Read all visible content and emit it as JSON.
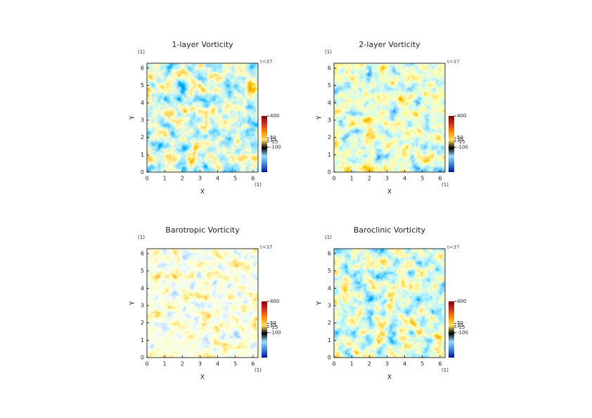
{
  "chart_data": [
    {
      "type": "heatmap",
      "title": "1-layer Vorticity",
      "xlabel": "X",
      "ylabel": "Y",
      "x_unit": "(1)",
      "y_unit": "(1)",
      "annotation": "t=37",
      "xlim": [
        0,
        6.283
      ],
      "xticks": [
        0,
        1,
        2,
        3,
        4,
        5,
        6
      ],
      "ylim": [
        0,
        6.283
      ],
      "yticks": [
        0,
        1,
        2,
        3,
        4,
        5,
        6
      ],
      "clim": [
        -500,
        400
      ],
      "cticks": [
        400,
        50,
        15,
        -15,
        -100
      ],
      "colormap": [
        "#7f0000",
        "#d7301f",
        "#ff8c00",
        "#ffe066",
        "#000000",
        "#9ad8ff",
        "#3a8ad8",
        "#0010a0"
      ]
    },
    {
      "type": "heatmap",
      "title": "2-layer Vorticity",
      "xlabel": "X",
      "ylabel": "Y",
      "x_unit": "(1)",
      "y_unit": "(1)",
      "annotation": "t=37",
      "xlim": [
        0,
        6.283
      ],
      "xticks": [
        0,
        1,
        2,
        3,
        4,
        5,
        6
      ],
      "ylim": [
        0,
        6.283
      ],
      "yticks": [
        0,
        1,
        2,
        3,
        4,
        5,
        6
      ],
      "clim": [
        -500,
        400
      ],
      "cticks": [
        400,
        50,
        15,
        -15,
        -100
      ],
      "colormap": [
        "#7f0000",
        "#d7301f",
        "#ff8c00",
        "#ffe066",
        "#000000",
        "#9ad8ff",
        "#3a8ad8",
        "#0010a0"
      ]
    },
    {
      "type": "heatmap",
      "title": "Barotropic Vorticity",
      "xlabel": "X",
      "ylabel": "Y",
      "x_unit": "(1)",
      "y_unit": "(1)",
      "annotation": "t=37",
      "xlim": [
        0,
        6.283
      ],
      "xticks": [
        0,
        1,
        2,
        3,
        4,
        5,
        6
      ],
      "ylim": [
        0,
        6.283
      ],
      "yticks": [
        0,
        1,
        2,
        3,
        4,
        5,
        6
      ],
      "clim": [
        -500,
        400
      ],
      "cticks": [
        400,
        50,
        15,
        -15,
        -100
      ],
      "colormap": [
        "#7f0000",
        "#d7301f",
        "#ff8c00",
        "#ffe066",
        "#000000",
        "#9ad8ff",
        "#3a8ad8",
        "#0010a0"
      ]
    },
    {
      "type": "heatmap",
      "title": "Baroclinic Vorticity",
      "xlabel": "X",
      "ylabel": "Y",
      "x_unit": "(1)",
      "y_unit": "(1)",
      "annotation": "t=37",
      "xlim": [
        0,
        6.283
      ],
      "xticks": [
        0,
        1,
        2,
        3,
        4,
        5,
        6
      ],
      "ylim": [
        0,
        6.283
      ],
      "yticks": [
        0,
        1,
        2,
        3,
        4,
        5,
        6
      ],
      "clim": [
        -500,
        400
      ],
      "cticks": [
        400,
        50,
        15,
        -15,
        -100
      ],
      "colormap": [
        "#7f0000",
        "#d7301f",
        "#ff8c00",
        "#ffe066",
        "#000000",
        "#9ad8ff",
        "#3a8ad8",
        "#0010a0"
      ]
    }
  ]
}
